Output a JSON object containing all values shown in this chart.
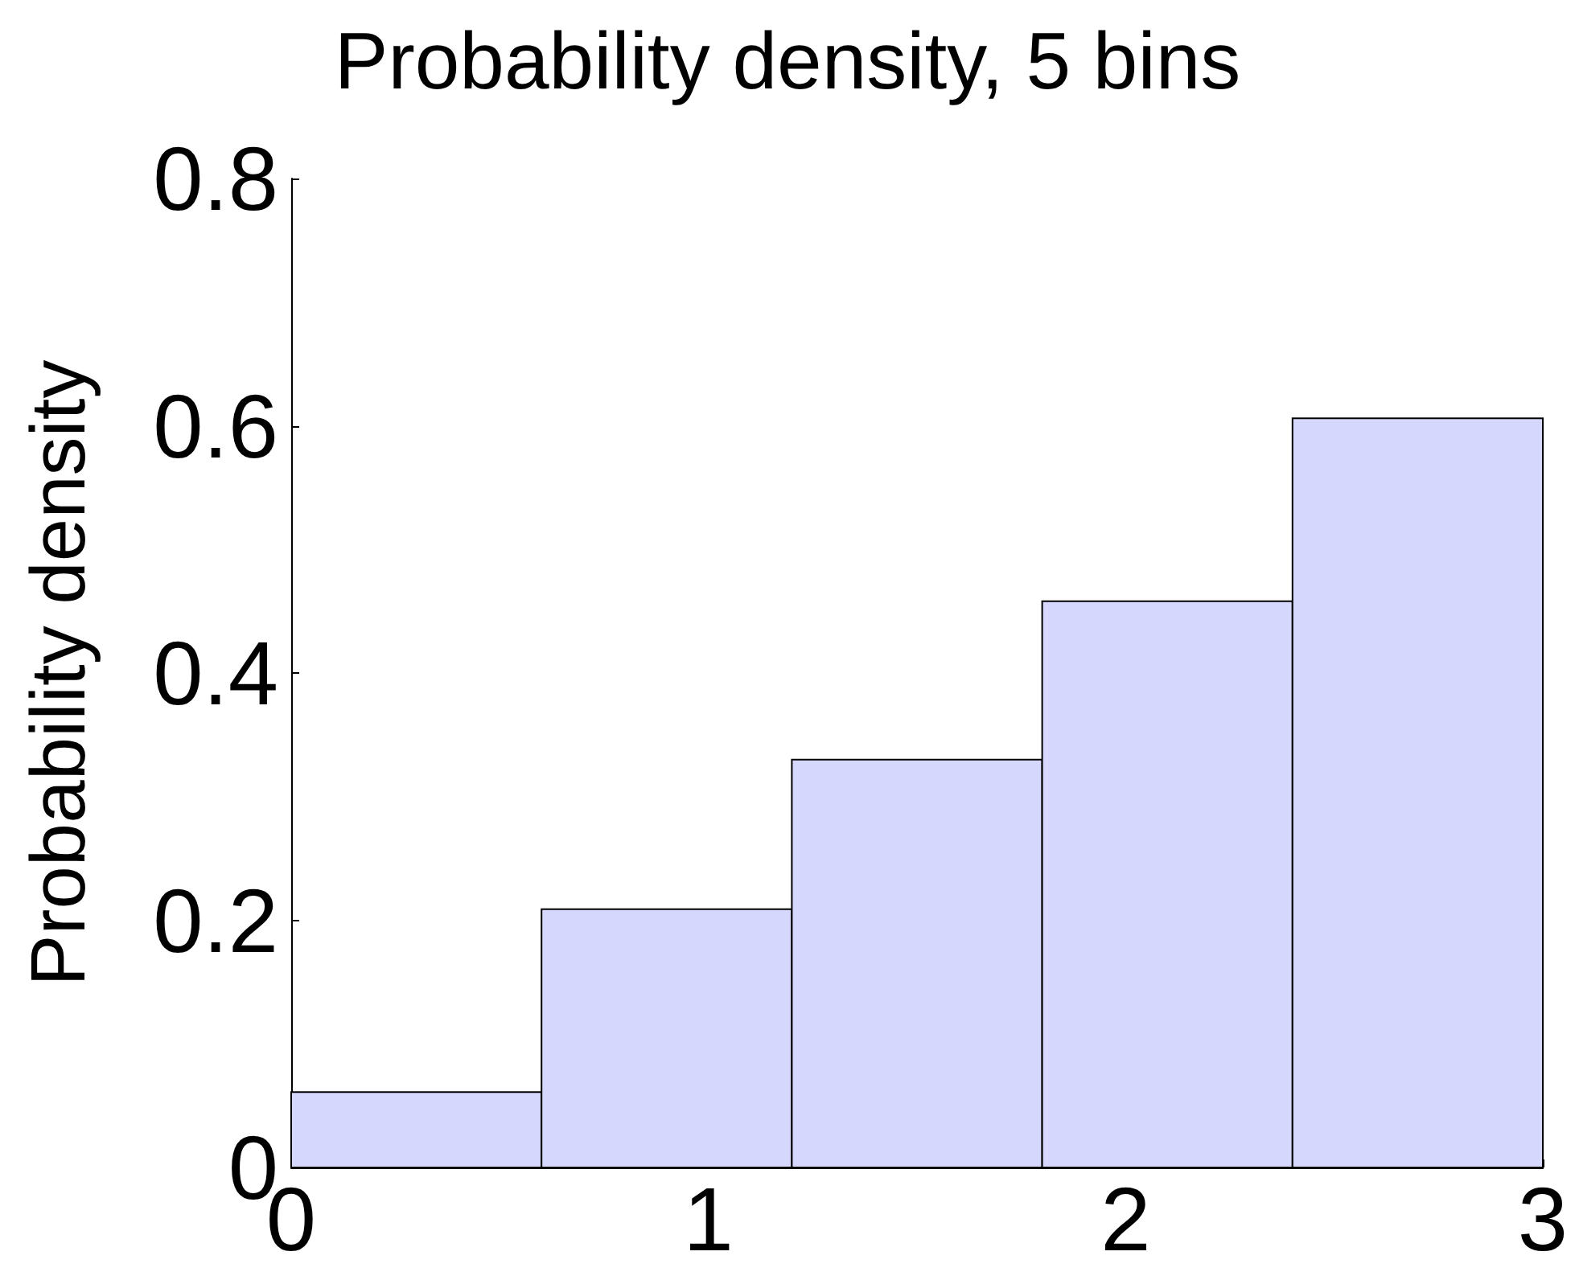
{
  "chart_data": {
    "type": "histogram",
    "title": "Probability density, 5 bins",
    "ylabel": "Probability density",
    "bins": [
      0,
      0.6,
      1.2,
      1.8,
      2.4,
      3
    ],
    "values": [
      0.061,
      0.209,
      0.33,
      0.458,
      0.606
    ],
    "color": "#d5d7fd",
    "xlim": [
      0,
      3
    ],
    "xticks": [
      0,
      1,
      2,
      3
    ],
    "ylim": [
      0,
      0.8
    ],
    "yticks": [
      0,
      0.2,
      0.4,
      0.6,
      0.8
    ],
    "grid": false
  }
}
